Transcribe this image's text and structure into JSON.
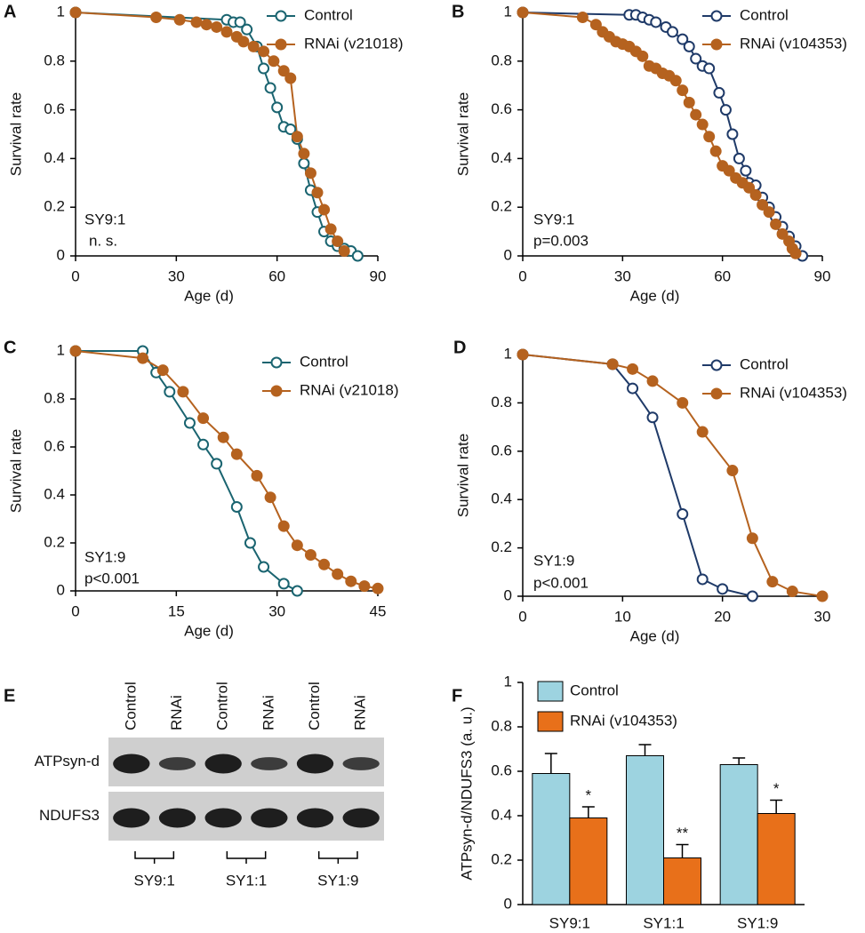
{
  "chart_data": [
    {
      "type": "line",
      "panel": "A",
      "ylabel": "Survival rate",
      "xlabel": "Age (d)",
      "xlim": [
        0,
        90
      ],
      "xticks": [
        0,
        30,
        60,
        90
      ],
      "ylim": [
        0,
        1
      ],
      "yticks": [
        0,
        0.2,
        0.4,
        0.6,
        0.8,
        1
      ],
      "annotations": [
        "SY9:1",
        "n. s."
      ],
      "series": [
        {
          "name": "Control",
          "color": "#1a6470",
          "marker": "open",
          "x": [
            0,
            45,
            47,
            49,
            51,
            54,
            56,
            58,
            60,
            62,
            64,
            66,
            68,
            70,
            72,
            74,
            76,
            78,
            80,
            82,
            84
          ],
          "values": [
            1,
            0.97,
            0.96,
            0.96,
            0.93,
            0.86,
            0.77,
            0.69,
            0.61,
            0.53,
            0.52,
            0.48,
            0.38,
            0.27,
            0.18,
            0.1,
            0.06,
            0.04,
            0.03,
            0.02,
            0
          ]
        },
        {
          "name": "RNAi (v21018)",
          "color": "#b5621f",
          "marker": "filled",
          "x": [
            0,
            24,
            31,
            36,
            39,
            42,
            45,
            48,
            50,
            53,
            56,
            59,
            62,
            64,
            66,
            68,
            70,
            72,
            74,
            76,
            78,
            80
          ],
          "values": [
            1,
            0.98,
            0.97,
            0.96,
            0.95,
            0.94,
            0.92,
            0.9,
            0.88,
            0.86,
            0.84,
            0.8,
            0.76,
            0.73,
            0.49,
            0.42,
            0.34,
            0.26,
            0.19,
            0.11,
            0.06,
            0.02
          ]
        }
      ]
    },
    {
      "type": "line",
      "panel": "B",
      "ylabel": "Survival rate",
      "xlabel": "Age (d)",
      "xlim": [
        0,
        90
      ],
      "xticks": [
        0,
        30,
        60,
        90
      ],
      "ylim": [
        0,
        1
      ],
      "yticks": [
        0,
        0.2,
        0.4,
        0.6,
        0.8,
        1
      ],
      "annotations": [
        "SY9:1",
        "p=0.003"
      ],
      "series": [
        {
          "name": "Control",
          "color": "#1f3a68",
          "marker": "open",
          "x": [
            0,
            32,
            34,
            36,
            38,
            40,
            43,
            45,
            48,
            50,
            52,
            54,
            56,
            59,
            61,
            63,
            65,
            67,
            68,
            70,
            72,
            74,
            76,
            78,
            80,
            82,
            84
          ],
          "values": [
            1,
            0.99,
            0.99,
            0.98,
            0.97,
            0.96,
            0.94,
            0.92,
            0.89,
            0.86,
            0.81,
            0.78,
            0.77,
            0.67,
            0.6,
            0.5,
            0.4,
            0.35,
            0.3,
            0.29,
            0.24,
            0.2,
            0.16,
            0.12,
            0.08,
            0.04,
            0
          ]
        },
        {
          "name": "RNAi (v104353)",
          "color": "#b5621f",
          "marker": "filled",
          "x": [
            0,
            18,
            22,
            24,
            26,
            28,
            30,
            32,
            34,
            36,
            38,
            40,
            42,
            44,
            46,
            48,
            50,
            52,
            54,
            56,
            58,
            60,
            62,
            64,
            66,
            68,
            70,
            72,
            74,
            76,
            78,
            80,
            81,
            82
          ],
          "values": [
            1,
            0.98,
            0.95,
            0.92,
            0.9,
            0.88,
            0.87,
            0.86,
            0.84,
            0.82,
            0.78,
            0.77,
            0.75,
            0.74,
            0.72,
            0.68,
            0.63,
            0.58,
            0.54,
            0.49,
            0.43,
            0.37,
            0.35,
            0.32,
            0.3,
            0.28,
            0.25,
            0.21,
            0.18,
            0.13,
            0.09,
            0.06,
            0.03,
            0.01
          ]
        }
      ]
    },
    {
      "type": "line",
      "panel": "C",
      "ylabel": "Survival rate",
      "xlabel": "Age (d)",
      "xlim": [
        0,
        45
      ],
      "xticks": [
        0,
        15,
        30,
        45
      ],
      "ylim": [
        0,
        1
      ],
      "yticks": [
        0,
        0.2,
        0.4,
        0.6,
        0.8,
        1
      ],
      "annotations": [
        "SY1:9",
        "p<0.001"
      ],
      "series": [
        {
          "name": "Control",
          "color": "#1a6470",
          "marker": "open",
          "x": [
            0,
            10,
            12,
            14,
            17,
            19,
            21,
            24,
            26,
            28,
            31,
            33
          ],
          "values": [
            1,
            1,
            0.91,
            0.83,
            0.7,
            0.61,
            0.53,
            0.35,
            0.2,
            0.1,
            0.03,
            0
          ]
        },
        {
          "name": "RNAi (v21018)",
          "color": "#b5621f",
          "marker": "filled",
          "x": [
            0,
            10,
            13,
            16,
            19,
            22,
            24,
            27,
            29,
            31,
            33,
            35,
            37,
            39,
            41,
            43,
            45
          ],
          "values": [
            1,
            0.97,
            0.92,
            0.83,
            0.72,
            0.64,
            0.57,
            0.48,
            0.39,
            0.27,
            0.19,
            0.15,
            0.11,
            0.07,
            0.04,
            0.02,
            0.01
          ]
        }
      ]
    },
    {
      "type": "line",
      "panel": "D",
      "ylabel": "Survival rate",
      "xlabel": "Age (d)",
      "xlim": [
        0,
        30
      ],
      "xticks": [
        0,
        10,
        20,
        30
      ],
      "ylim": [
        0,
        1
      ],
      "yticks": [
        0,
        0.2,
        0.4,
        0.6,
        0.8,
        1
      ],
      "annotations": [
        "SY1:9",
        "p<0.001"
      ],
      "series": [
        {
          "name": "Control",
          "color": "#1f3a68",
          "marker": "open",
          "x": [
            0,
            9,
            11,
            13,
            16,
            18,
            20,
            23
          ],
          "values": [
            1,
            0.96,
            0.86,
            0.74,
            0.34,
            0.07,
            0.03,
            0
          ]
        },
        {
          "name": "RNAi (v104353)",
          "color": "#b5621f",
          "marker": "filled",
          "x": [
            0,
            9,
            11,
            13,
            16,
            18,
            21,
            23,
            25,
            27,
            30
          ],
          "values": [
            1,
            0.96,
            0.94,
            0.89,
            0.8,
            0.68,
            0.52,
            0.24,
            0.06,
            0.02,
            0
          ]
        }
      ]
    },
    {
      "type": "bar",
      "panel": "F",
      "ylabel": "ATPsyn-d/NDUFS3 (a. u.)",
      "categories": [
        "SY9:1",
        "SY1:1",
        "SY1:9"
      ],
      "ylim": [
        0,
        1
      ],
      "yticks": [
        0,
        0.2,
        0.4,
        0.6,
        0.8,
        1
      ],
      "series": [
        {
          "name": "Control",
          "color": "#9dd3e0",
          "values": [
            0.59,
            0.67,
            0.63
          ],
          "errors": [
            0.09,
            0.05,
            0.03
          ]
        },
        {
          "name": "RNAi (v104353)",
          "color": "#e8701a",
          "values": [
            0.39,
            0.21,
            0.41
          ],
          "errors": [
            0.05,
            0.06,
            0.06
          ],
          "significance": [
            "*",
            "**",
            "*"
          ]
        }
      ]
    }
  ],
  "blot": {
    "panel": "E",
    "lanes": [
      "Control",
      "RNAi",
      "Control",
      "RNAi",
      "Control",
      "RNAi"
    ],
    "rows": [
      "ATPsyn-d",
      "NDUFS3"
    ],
    "groups": [
      "SY9:1",
      "SY1:1",
      "SY1:9"
    ]
  }
}
